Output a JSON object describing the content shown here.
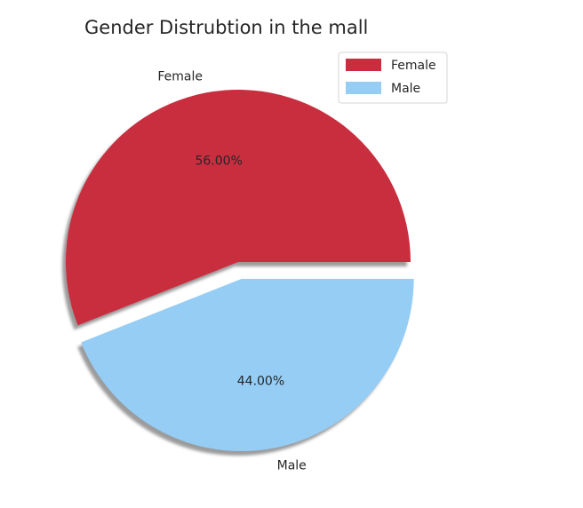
{
  "chart_data": {
    "type": "pie",
    "title": "Gender Distrubtion in the mall",
    "categories": [
      "Female",
      "Male"
    ],
    "values": [
      56.0,
      44.0
    ],
    "percent_labels": [
      "56.00%",
      "44.00%"
    ],
    "colors": [
      "#c92e3f",
      "#96cdf5"
    ],
    "explode": [
      0.0,
      0.1
    ],
    "shadow": true,
    "start_angle_deg": 0,
    "legend": {
      "placement": "top-right",
      "entries": [
        "Female",
        "Male"
      ]
    }
  }
}
